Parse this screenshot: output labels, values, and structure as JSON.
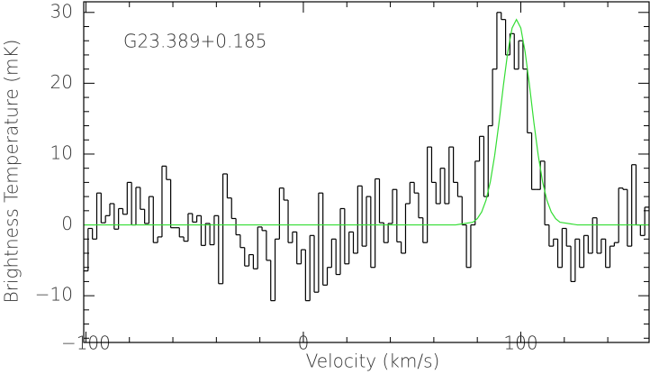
{
  "chart_data": {
    "type": "line",
    "annotation": "G23.389+0.185",
    "xlabel": "Velocity (km/s)",
    "ylabel": "Brightness Temperature (mK)",
    "xlim": [
      -101,
      159
    ],
    "ylim": [
      -16.6,
      31.5
    ],
    "xticks": [
      {
        "value": -100,
        "label": "−100"
      },
      0,
      100
    ],
    "yticks": [
      {
        "value": -10,
        "label": "−10"
      },
      0,
      10,
      20,
      30
    ],
    "xminorticks": [
      -80,
      -60,
      -40,
      -20,
      20,
      40,
      60,
      80,
      120,
      140
    ],
    "yminorticks": [
      -16,
      -14,
      -12,
      -8,
      -6,
      -4,
      -2,
      2,
      4,
      6,
      8,
      12,
      14,
      16,
      18,
      22,
      24,
      26,
      28
    ],
    "series": [
      {
        "color": "#000000",
        "steps": true,
        "x": [
          -100,
          -98,
          -96,
          -94,
          -92,
          -90,
          -88,
          -86,
          -84,
          -82,
          -80,
          -78,
          -76,
          -74,
          -72,
          -70,
          -68,
          -66,
          -64,
          -62,
          -60,
          -58,
          -56,
          -54,
          -52,
          -50,
          -48,
          -46,
          -44,
          -42,
          -40,
          -38,
          -36,
          -34,
          -32,
          -30,
          -28,
          -26,
          -24,
          -22,
          -20,
          -18,
          -16,
          -14,
          -12,
          -10,
          -8,
          -6,
          -4,
          -2,
          0,
          2,
          4,
          6,
          8,
          10,
          12,
          14,
          16,
          18,
          20,
          22,
          24,
          26,
          28,
          30,
          32,
          34,
          36,
          38,
          40,
          42,
          44,
          46,
          48,
          50,
          52,
          54,
          56,
          58,
          60,
          62,
          64,
          66,
          68,
          70,
          72,
          74,
          76,
          78,
          80,
          82,
          84,
          86,
          88,
          90,
          92,
          94,
          96,
          98,
          100,
          102,
          104,
          106,
          108,
          110,
          112,
          114,
          116,
          118,
          120,
          122,
          124,
          126,
          128,
          130,
          132,
          134,
          136,
          138,
          140,
          142,
          144,
          146,
          148,
          150,
          152,
          154,
          156,
          158
        ],
        "values": [
          -6.5,
          -0.5,
          -2,
          4.5,
          0.3,
          1.3,
          3,
          -0.6,
          2.3,
          1.5,
          6,
          0,
          5.3,
          2.2,
          0.2,
          4,
          -2.5,
          -1.7,
          8.3,
          6.4,
          -0.4,
          -0.4,
          -1.7,
          -2.3,
          1.6,
          0.4,
          1.3,
          -2.9,
          0.2,
          -2.8,
          1.3,
          -8.3,
          7.2,
          3.8,
          0.9,
          -1.4,
          -3.2,
          -5.8,
          -4.2,
          -6.2,
          -0.3,
          -0.8,
          -5,
          -10.7,
          -2,
          5.2,
          3.5,
          -2.5,
          -1,
          -5.5,
          -3.5,
          -10.7,
          -1.5,
          -9.5,
          4.5,
          -8.5,
          -6,
          -2,
          -7,
          2.3,
          -5.5,
          -1,
          -4,
          5.5,
          -3,
          4,
          -6,
          6.5,
          0.3,
          -2.5,
          0.2,
          5,
          -2.4,
          -4,
          3,
          6,
          4.5,
          1,
          -2.5,
          11,
          6,
          3,
          8,
          3,
          11,
          6,
          4,
          0,
          -6,
          0,
          9,
          12.5,
          4,
          14,
          22,
          30,
          29,
          24,
          27,
          22,
          26,
          22,
          13,
          5,
          5,
          9,
          0,
          -3,
          -2,
          -6,
          -0.5,
          -3,
          -8,
          -2,
          -6,
          -1.5,
          -4,
          1,
          -4,
          -2,
          -6,
          -3,
          -2.5,
          5.2,
          5,
          -3,
          8.5,
          0,
          -1.5,
          2.5
        ]
      },
      {
        "color": "#33dd33",
        "x": [
          -101,
          70,
          78,
          80,
          82,
          84,
          86,
          88,
          90,
          92,
          94,
          96,
          98,
          100,
          102,
          104,
          106,
          108,
          110,
          112,
          114,
          116,
          118,
          126,
          159
        ],
        "values": [
          0,
          0,
          0.38,
          0.88,
          1.82,
          3.48,
          6.11,
          9.84,
          14.5,
          19.7,
          24.4,
          27.8,
          29,
          27.8,
          24.4,
          19.7,
          14.5,
          9.84,
          6.11,
          3.48,
          1.82,
          0.88,
          0.38,
          0,
          0
        ]
      }
    ]
  }
}
